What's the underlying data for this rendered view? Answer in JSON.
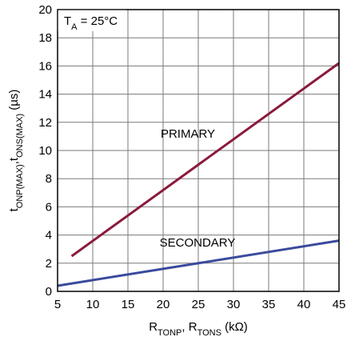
{
  "chart_data": {
    "type": "line",
    "annotation": {
      "main": "T",
      "sub": "A",
      "rest": " = 25°C"
    },
    "xlabel": {
      "parts": [
        {
          "t": "R",
          "sub": false
        },
        {
          "t": "TONP",
          "sub": true
        },
        {
          "t": ", R",
          "sub": false
        },
        {
          "t": "TONS",
          "sub": true
        },
        {
          "t": " (kΩ)",
          "sub": false
        }
      ]
    },
    "ylabel": {
      "parts": [
        {
          "t": "t",
          "sub": false
        },
        {
          "t": "ONP(MAX)",
          "sub": true
        },
        {
          "t": ",t",
          "sub": false
        },
        {
          "t": "ONS(MAX)",
          "sub": true
        },
        {
          "t": " (µs)",
          "sub": false
        }
      ]
    },
    "xlim": [
      5,
      45
    ],
    "ylim": [
      0,
      20
    ],
    "xticks": [
      5,
      10,
      15,
      20,
      25,
      30,
      35,
      40,
      45
    ],
    "yticks": [
      0,
      2,
      4,
      6,
      8,
      10,
      12,
      14,
      16,
      18,
      20
    ],
    "grid": true,
    "series": [
      {
        "name": "PRIMARY",
        "color": "#8b1a3a",
        "x": [
          7,
          45
        ],
        "y": [
          2.5,
          16.2
        ]
      },
      {
        "name": "SECONDARY",
        "color": "#3b4a9c",
        "x": [
          5,
          45
        ],
        "y": [
          0.4,
          3.6
        ]
      }
    ]
  }
}
